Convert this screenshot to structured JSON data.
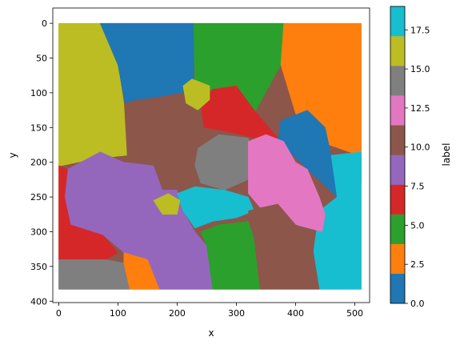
{
  "chart_data": {
    "type": "heatmap",
    "xlabel": "x",
    "ylabel": "y",
    "xlim": [
      -10,
      525
    ],
    "ylim": [
      402,
      -22
    ],
    "y_inverted": true,
    "grid": false,
    "x_ticks": [
      0,
      100,
      200,
      300,
      400,
      500
    ],
    "y_ticks": [
      0,
      50,
      100,
      150,
      200,
      250,
      300,
      350,
      400
    ],
    "image_extent": {
      "x": [
        0,
        511
      ],
      "y": [
        0,
        383
      ]
    },
    "colorbar": {
      "label": "label",
      "colormap": "tab10",
      "vmin": 0,
      "vmax": 19,
      "ticks": [
        "0.0",
        "2.5",
        "5.0",
        "7.5",
        "10.0",
        "12.5",
        "15.0",
        "17.5"
      ],
      "tick_values": [
        0,
        2.5,
        5,
        7.5,
        10,
        12.5,
        15,
        17.5
      ],
      "bins": [
        {
          "from": 0,
          "to": 1.9,
          "color": "#1f77b4"
        },
        {
          "from": 1.9,
          "to": 3.8,
          "color": "#ff7f0e"
        },
        {
          "from": 3.8,
          "to": 5.7,
          "color": "#2ca02c"
        },
        {
          "from": 5.7,
          "to": 7.6,
          "color": "#d62728"
        },
        {
          "from": 7.6,
          "to": 9.5,
          "color": "#9467bd"
        },
        {
          "from": 9.5,
          "to": 11.4,
          "color": "#8c564b"
        },
        {
          "from": 11.4,
          "to": 13.3,
          "color": "#e377c2"
        },
        {
          "from": 13.3,
          "to": 15.2,
          "color": "#7f7f7f"
        },
        {
          "from": 15.2,
          "to": 17.1,
          "color": "#bcbd22"
        },
        {
          "from": 17.1,
          "to": 19,
          "color": "#17becf"
        }
      ]
    },
    "regions": [
      {
        "label": 16,
        "color": "#bcbd22",
        "points": [
          [
            0,
            0
          ],
          [
            70,
            0
          ],
          [
            100,
            60
          ],
          [
            110,
            115
          ],
          [
            115,
            190
          ],
          [
            60,
            195
          ],
          [
            5,
            205
          ],
          [
            0,
            205
          ]
        ]
      },
      {
        "label": 0,
        "color": "#1f77b4",
        "points": [
          [
            70,
            0
          ],
          [
            228,
            0
          ],
          [
            228,
            100
          ],
          [
            130,
            110
          ],
          [
            112,
            115
          ],
          [
            100,
            60
          ]
        ]
      },
      {
        "label": 4,
        "color": "#2ca02c",
        "points": [
          [
            228,
            0
          ],
          [
            380,
            0
          ],
          [
            375,
            60
          ],
          [
            330,
            130
          ],
          [
            255,
            130
          ],
          [
            230,
            100
          ]
        ]
      },
      {
        "label": 2,
        "color": "#ff7f0e",
        "points": [
          [
            380,
            0
          ],
          [
            511,
            0
          ],
          [
            511,
            190
          ],
          [
            490,
            185
          ],
          [
            440,
            170
          ],
          [
            400,
            130
          ],
          [
            375,
            60
          ]
        ]
      },
      {
        "label": 10,
        "color": "#8c564b",
        "points": [
          [
            112,
            115
          ],
          [
            210,
            100
          ],
          [
            240,
            130
          ],
          [
            250,
            170
          ],
          [
            230,
            210
          ],
          [
            190,
            215
          ],
          [
            150,
            200
          ],
          [
            120,
            195
          ]
        ]
      },
      {
        "label": 6,
        "color": "#d62728",
        "points": [
          [
            240,
            110
          ],
          [
            260,
            95
          ],
          [
            300,
            90
          ],
          [
            330,
            125
          ],
          [
            370,
            165
          ],
          [
            330,
            165
          ],
          [
            280,
            155
          ],
          [
            245,
            150
          ]
        ]
      },
      {
        "label": 16,
        "color": "#bcbd22",
        "points": [
          [
            210,
            90
          ],
          [
            225,
            80
          ],
          [
            255,
            90
          ],
          [
            255,
            110
          ],
          [
            235,
            125
          ],
          [
            215,
            115
          ]
        ]
      },
      {
        "label": 0,
        "color": "#1f77b4",
        "points": [
          [
            375,
            140
          ],
          [
            420,
            125
          ],
          [
            450,
            150
          ],
          [
            460,
            190
          ],
          [
            511,
            190
          ],
          [
            511,
            230
          ],
          [
            470,
            250
          ],
          [
            420,
            210
          ],
          [
            390,
            185
          ],
          [
            370,
            170
          ]
        ]
      },
      {
        "label": 18,
        "color": "#17becf",
        "points": [
          [
            460,
            190
          ],
          [
            511,
            185
          ],
          [
            511,
            383
          ],
          [
            440,
            383
          ],
          [
            430,
            330
          ],
          [
            440,
            270
          ],
          [
            470,
            250
          ]
        ]
      },
      {
        "label": 14,
        "color": "#7f7f7f",
        "points": [
          [
            235,
            180
          ],
          [
            270,
            160
          ],
          [
            320,
            165
          ],
          [
            330,
            190
          ],
          [
            320,
            225
          ],
          [
            280,
            240
          ],
          [
            240,
            230
          ],
          [
            230,
            205
          ]
        ]
      },
      {
        "label": 12,
        "color": "#e377c2",
        "points": [
          [
            320,
            170
          ],
          [
            350,
            160
          ],
          [
            380,
            170
          ],
          [
            400,
            200
          ],
          [
            420,
            210
          ],
          [
            440,
            250
          ],
          [
            450,
            275
          ],
          [
            445,
            300
          ],
          [
            400,
            290
          ],
          [
            370,
            260
          ],
          [
            340,
            265
          ],
          [
            320,
            245
          ],
          [
            320,
            200
          ]
        ]
      },
      {
        "label": 8,
        "color": "#9467bd",
        "points": [
          [
            15,
            210
          ],
          [
            70,
            185
          ],
          [
            110,
            200
          ],
          [
            160,
            205
          ],
          [
            175,
            240
          ],
          [
            200,
            240
          ],
          [
            210,
            270
          ],
          [
            230,
            300
          ],
          [
            250,
            320
          ],
          [
            260,
            383
          ],
          [
            170,
            383
          ],
          [
            150,
            340
          ],
          [
            110,
            330
          ],
          [
            75,
            305
          ],
          [
            20,
            290
          ],
          [
            10,
            250
          ]
        ]
      },
      {
        "label": 6,
        "color": "#d62728",
        "points": [
          [
            0,
            205
          ],
          [
            15,
            210
          ],
          [
            10,
            250
          ],
          [
            20,
            290
          ],
          [
            75,
            305
          ],
          [
            100,
            330
          ],
          [
            80,
            340
          ],
          [
            0,
            340
          ]
        ]
      },
      {
        "label": 14,
        "color": "#7f7f7f",
        "points": [
          [
            0,
            340
          ],
          [
            80,
            340
          ],
          [
            110,
            345
          ],
          [
            120,
            383
          ],
          [
            0,
            383
          ]
        ]
      },
      {
        "label": 2,
        "color": "#ff7f0e",
        "points": [
          [
            110,
            330
          ],
          [
            150,
            340
          ],
          [
            170,
            383
          ],
          [
            120,
            383
          ],
          [
            110,
            345
          ]
        ]
      },
      {
        "label": 18,
        "color": "#17becf",
        "points": [
          [
            200,
            245
          ],
          [
            230,
            235
          ],
          [
            280,
            240
          ],
          [
            320,
            250
          ],
          [
            330,
            270
          ],
          [
            300,
            280
          ],
          [
            260,
            285
          ],
          [
            230,
            295
          ],
          [
            210,
            270
          ]
        ]
      },
      {
        "label": 4,
        "color": "#2ca02c",
        "points": [
          [
            240,
            300
          ],
          [
            270,
            290
          ],
          [
            320,
            285
          ],
          [
            330,
            310
          ],
          [
            340,
            383
          ],
          [
            260,
            383
          ],
          [
            250,
            320
          ]
        ]
      },
      {
        "label": 10,
        "color": "#8c564b",
        "points": [
          [
            320,
            270
          ],
          [
            370,
            260
          ],
          [
            400,
            290
          ],
          [
            430,
            300
          ],
          [
            430,
            330
          ],
          [
            440,
            383
          ],
          [
            340,
            383
          ],
          [
            330,
            310
          ]
        ]
      },
      {
        "label": 16,
        "color": "#bcbd22",
        "points": [
          [
            160,
            255
          ],
          [
            185,
            245
          ],
          [
            205,
            255
          ],
          [
            200,
            275
          ],
          [
            175,
            275
          ]
        ]
      }
    ]
  }
}
